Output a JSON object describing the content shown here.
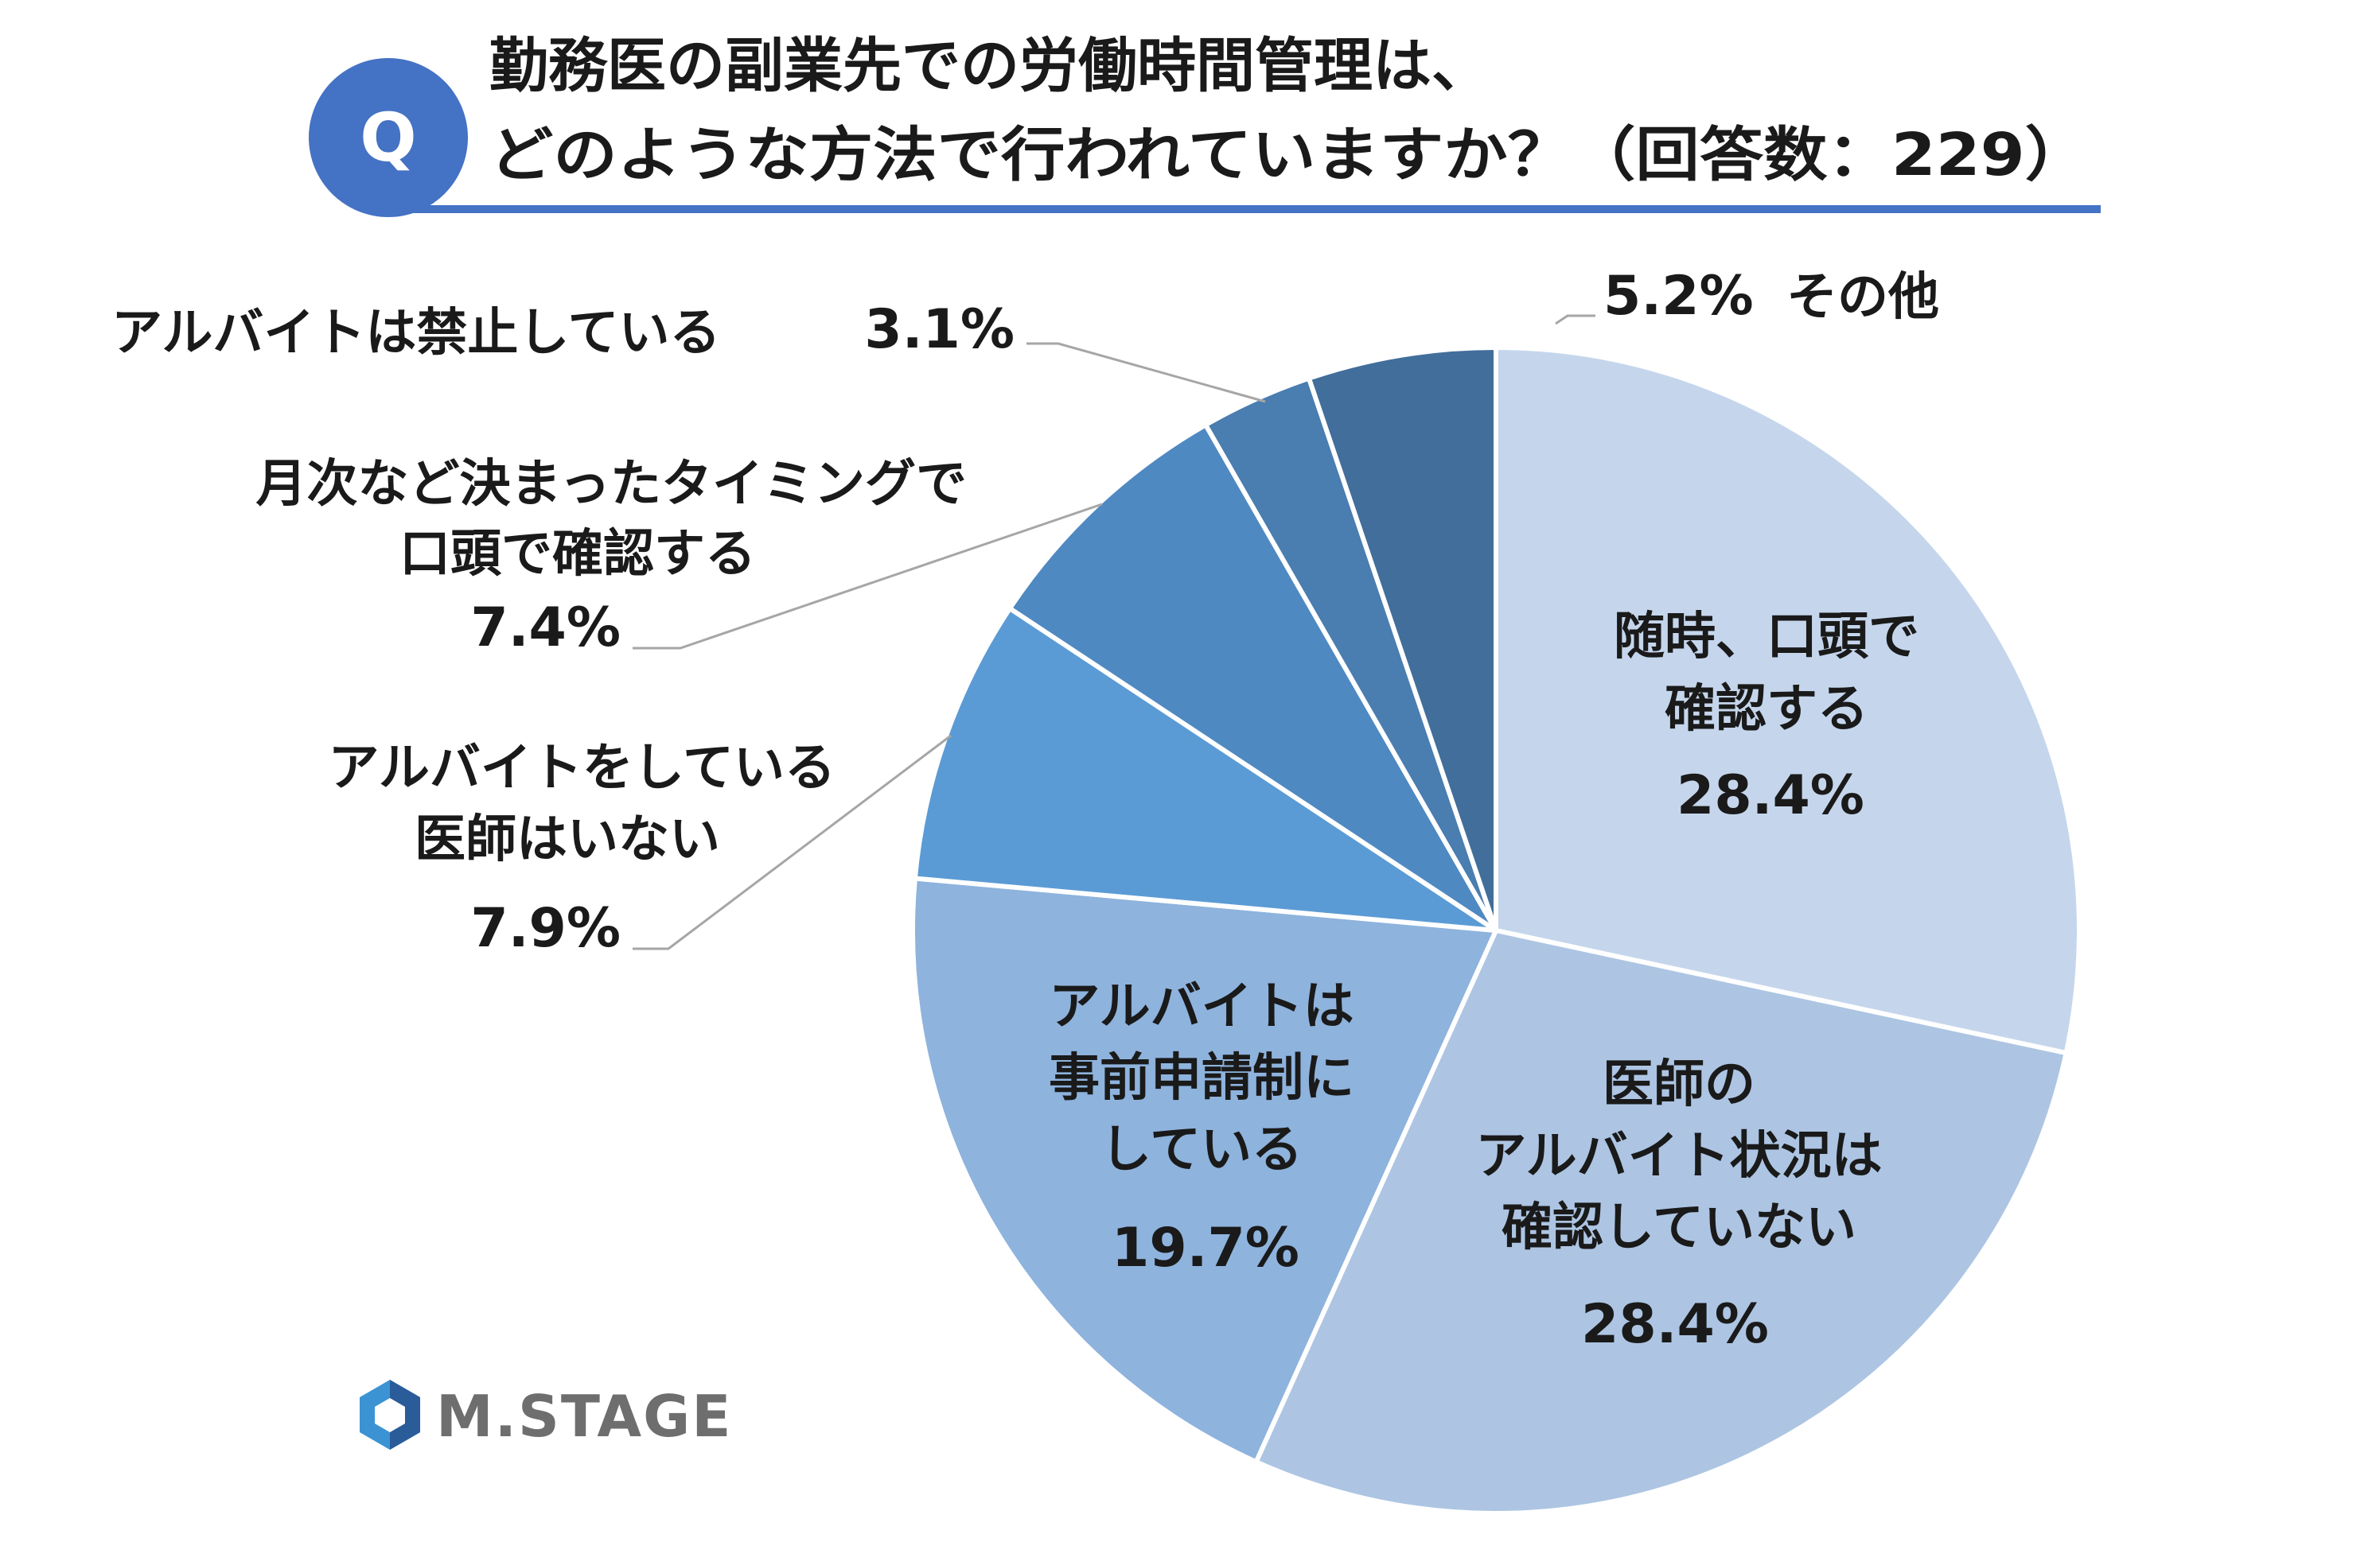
{
  "title": {
    "badge": "Q",
    "line1": "勤務医の副業先での労働時間管理は、",
    "line2": "どのような方法で行われていますか？（回答数：229）"
  },
  "logo": {
    "text": "M.STAGE",
    "icon": "m-stage-logo-icon"
  },
  "colors": {
    "accent": "#4472C4",
    "title_rule": "#4472C4",
    "slice_border": "#ffffff",
    "leader_line": "#a6a6a6"
  },
  "chart_data": {
    "type": "pie",
    "unit": "%",
    "start": "12 o'clock",
    "direction": "clockwise",
    "slices": [
      {
        "name": "随時、口頭で確認する",
        "value": 28.4,
        "label_lines": [
          "随時、口頭で",
          "確認する"
        ],
        "pct": "28.4%",
        "color": "#C5D6EC"
      },
      {
        "name": "医師のアルバイト状況は確認していない",
        "value": 28.4,
        "label_lines": [
          "医師の",
          "アルバイト状況は",
          "確認していない"
        ],
        "pct": "28.4%",
        "color": "#ADC5E3"
      },
      {
        "name": "アルバイトは事前申請制にしている",
        "value": 19.7,
        "label_lines": [
          "アルバイトは",
          "事前申請制に",
          "している"
        ],
        "pct": "19.7%",
        "color": "#8EB3DD"
      },
      {
        "name": "アルバイトをしている医師はいない",
        "value": 7.9,
        "label_lines": [
          "アルバイトをしている",
          "医師はいない"
        ],
        "pct": "7.9%",
        "color": "#5B9BD5"
      },
      {
        "name": "月次など決まったタイミングで口頭で確認する",
        "value": 7.4,
        "label_lines": [
          "月次など決まったタイミングで",
          "口頭で確認する"
        ],
        "pct": "7.4%",
        "color": "#4F89C1"
      },
      {
        "name": "アルバイトは禁止している",
        "value": 3.1,
        "label_lines": [
          "アルバイトは禁止している"
        ],
        "pct": "3.1%",
        "color": "#4A7DB0"
      },
      {
        "name": "その他",
        "value": 5.2,
        "label_lines": [
          "その他"
        ],
        "pct": "5.2%",
        "color": "#416E9B"
      }
    ]
  }
}
